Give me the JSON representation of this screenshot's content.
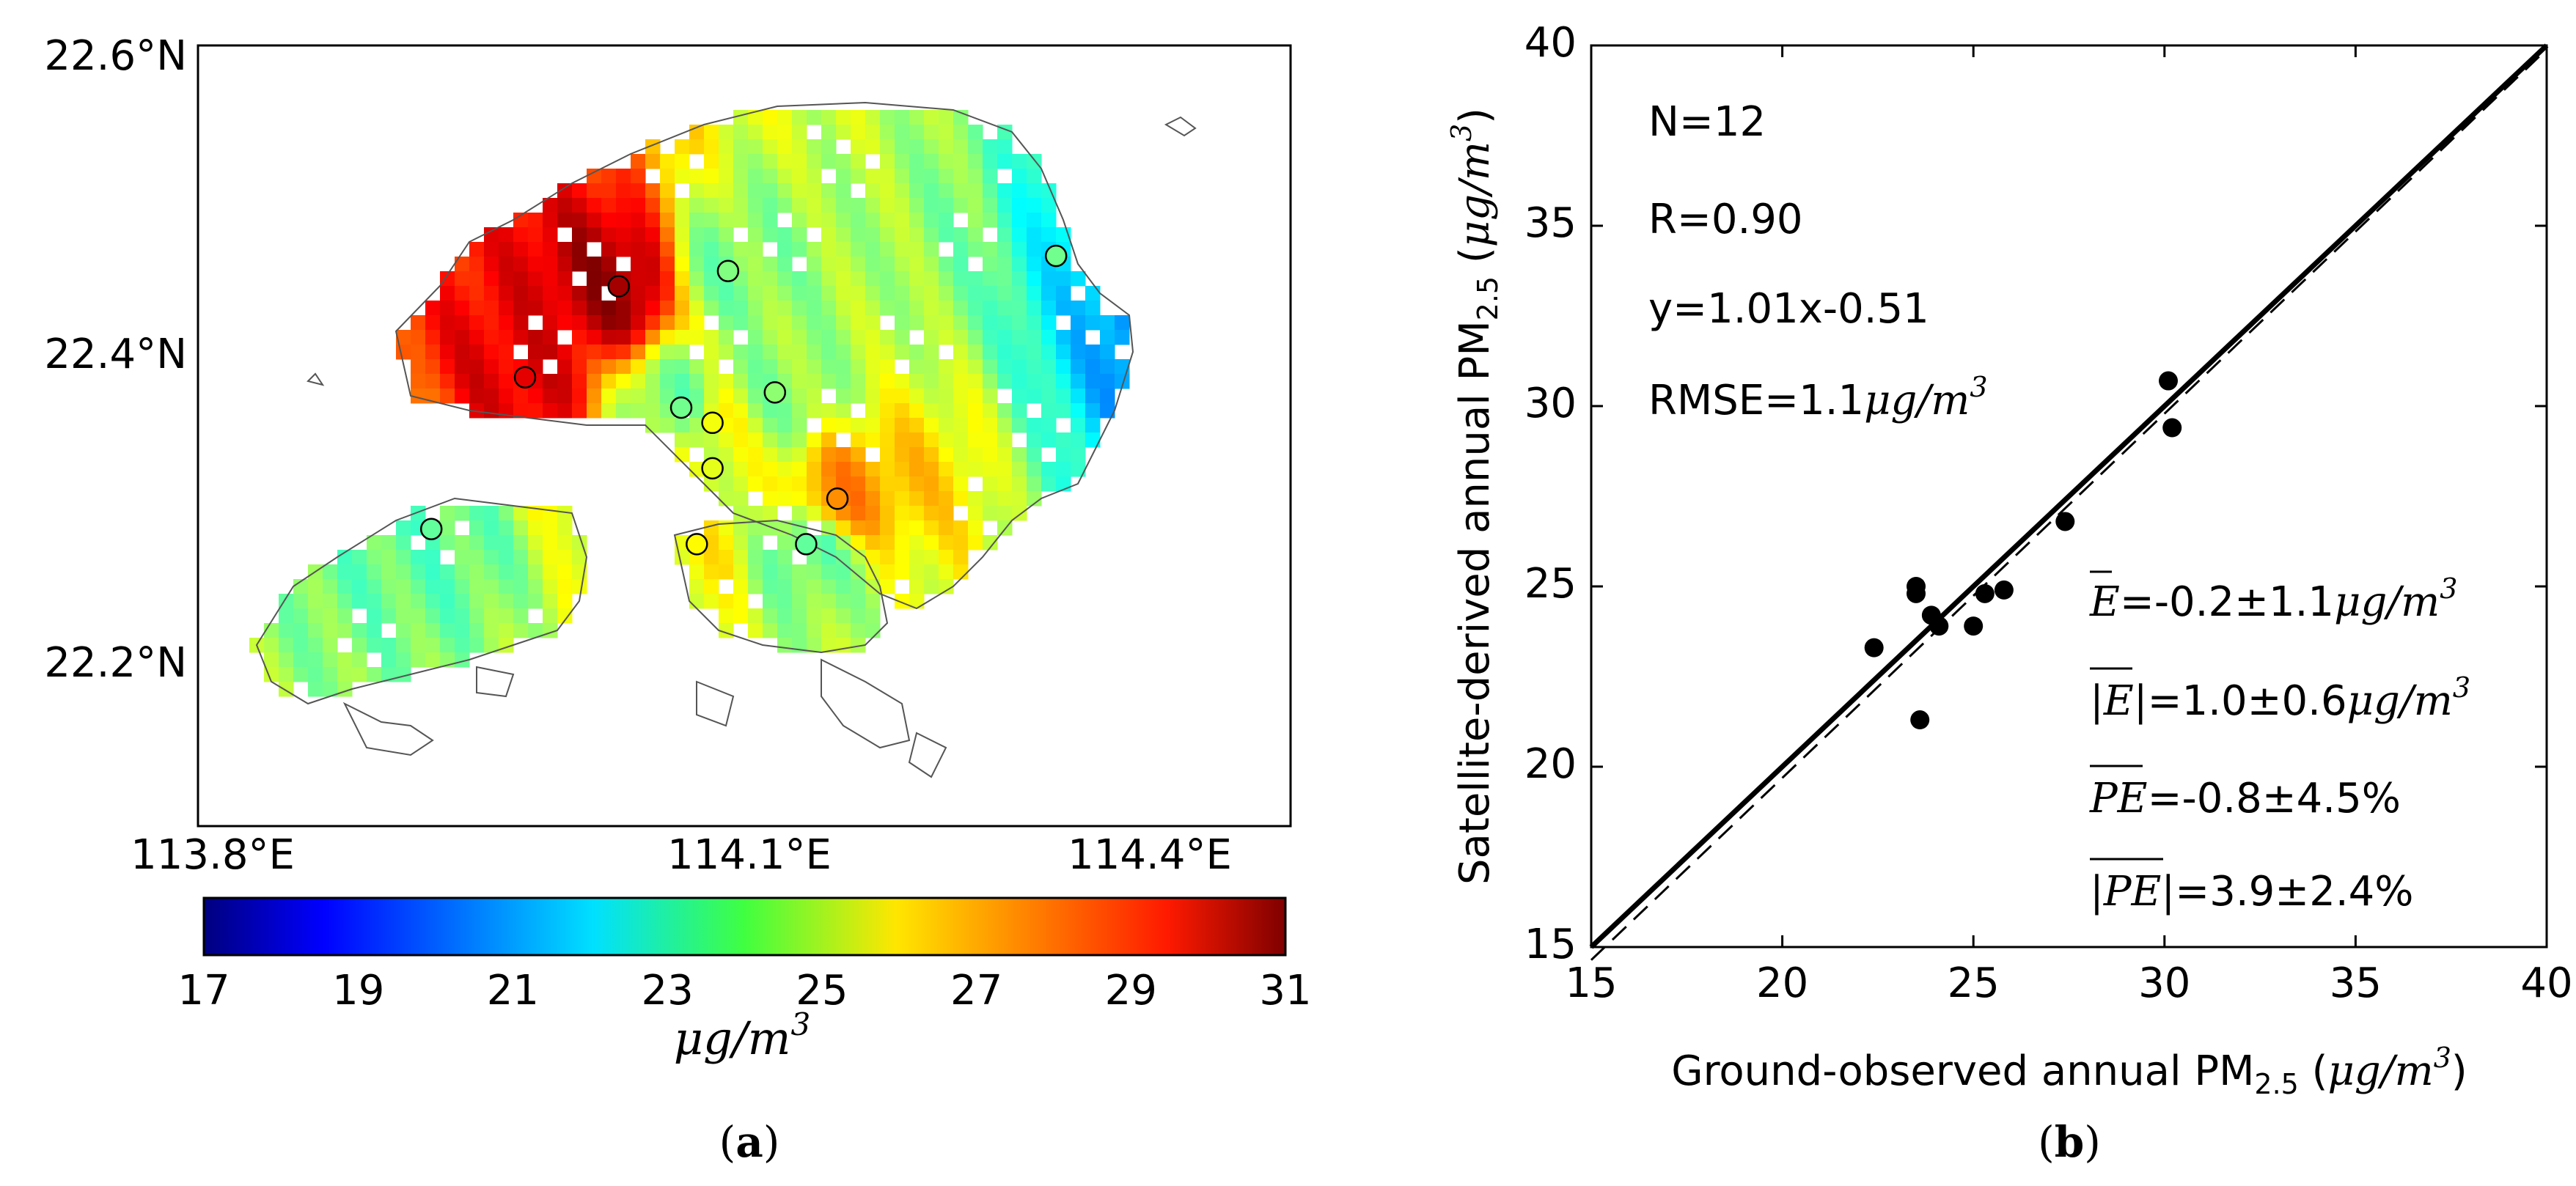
{
  "panel_a": {
    "caption_open": "(",
    "caption_letter": "a",
    "caption_close": ")",
    "lat_ticks": [
      "22.6°N",
      "22.4°N",
      "22.2°N"
    ],
    "lon_ticks": [
      "113.8°E",
      "114.1°E",
      "114.4°E"
    ],
    "colorbar_ticks": [
      "17",
      "19",
      "21",
      "23",
      "25",
      "27",
      "29",
      "31"
    ],
    "colorbar_label_base": "μg/m",
    "colorbar_label_exp": "3",
    "colorbar_range": [
      17,
      31
    ]
  },
  "panel_b": {
    "caption_open": "(",
    "caption_letter": "b",
    "caption_close": ")",
    "stats": {
      "n": "N=12",
      "r": "R=0.90",
      "fit": "y=1.01x-0.51",
      "rmse_text": "RMSE=1.1",
      "rmse_unit": "μg/m",
      "rmse_exp": "3"
    },
    "errors": [
      {
        "sym": "E",
        "val": "=-0.2±1.1",
        "unit": "μg/m",
        "exp": "3"
      },
      {
        "sym": "|E|",
        "val": "=1.0±0.6",
        "unit": "μg/m",
        "exp": "3"
      },
      {
        "sym": "PE",
        "val": "=-0.8±4.5%",
        "unit": "",
        "exp": ""
      },
      {
        "sym": "|PE|",
        "val": "=3.9±2.4%",
        "unit": "",
        "exp": ""
      }
    ]
  },
  "chart_data": [
    {
      "type": "heatmap",
      "title": "",
      "xlabel": "",
      "ylabel": "",
      "x_ticks": [
        "113.8°E",
        "114.1°E",
        "114.4°E"
      ],
      "y_ticks": [
        "22.6°N",
        "22.4°N",
        "22.2°N"
      ],
      "colorbar": {
        "min": 17,
        "max": 31,
        "ticks": [
          17,
          19,
          21,
          23,
          25,
          27,
          29,
          31
        ],
        "label": "μg/m3",
        "colormap": "jet"
      },
      "stations": [
        {
          "lon": 114.06,
          "lat": 22.45,
          "value": 30.5
        },
        {
          "lon": 114.0,
          "lat": 22.39,
          "value": 29.6
        },
        {
          "lon": 114.13,
          "lat": 22.46,
          "value": 24.0
        },
        {
          "lon": 114.16,
          "lat": 22.38,
          "value": 24.2
        },
        {
          "lon": 114.1,
          "lat": 22.37,
          "value": 23.8
        },
        {
          "lon": 114.12,
          "lat": 22.36,
          "value": 25.6
        },
        {
          "lon": 114.12,
          "lat": 22.33,
          "value": 25.4
        },
        {
          "lon": 114.2,
          "lat": 22.31,
          "value": 27.3
        },
        {
          "lon": 114.11,
          "lat": 22.28,
          "value": 25.8
        },
        {
          "lon": 114.18,
          "lat": 22.28,
          "value": 23.6
        },
        {
          "lon": 113.94,
          "lat": 22.29,
          "value": 23.6
        },
        {
          "lon": 114.34,
          "lat": 22.47,
          "value": 23.8
        }
      ]
    },
    {
      "type": "scatter",
      "title": "",
      "xlabel": "Ground-observed annual PM2.5 (μg/m3)",
      "ylabel": "Satellite-derived annual PM2.5 (μg/m3)",
      "xlim": [
        15,
        40
      ],
      "ylim": [
        15,
        40
      ],
      "x_ticks": [
        15,
        20,
        25,
        30,
        35,
        40
      ],
      "y_ticks": [
        15,
        20,
        25,
        30,
        35,
        40
      ],
      "points": [
        {
          "x": 22.4,
          "y": 23.3
        },
        {
          "x": 23.5,
          "y": 25.0
        },
        {
          "x": 23.5,
          "y": 24.8
        },
        {
          "x": 23.6,
          "y": 21.3
        },
        {
          "x": 23.9,
          "y": 24.2
        },
        {
          "x": 24.1,
          "y": 23.9
        },
        {
          "x": 25.0,
          "y": 23.9
        },
        {
          "x": 25.3,
          "y": 24.8
        },
        {
          "x": 25.8,
          "y": 24.9
        },
        {
          "x": 27.4,
          "y": 26.8
        },
        {
          "x": 30.1,
          "y": 30.7
        },
        {
          "x": 30.2,
          "y": 29.4
        }
      ],
      "lines": [
        {
          "name": "1:1 line",
          "style": "solid",
          "slope": 1.0,
          "intercept": 0.0
        },
        {
          "name": "fit",
          "style": "dashed",
          "slope": 1.01,
          "intercept": -0.51
        }
      ],
      "legend": "none"
    }
  ]
}
